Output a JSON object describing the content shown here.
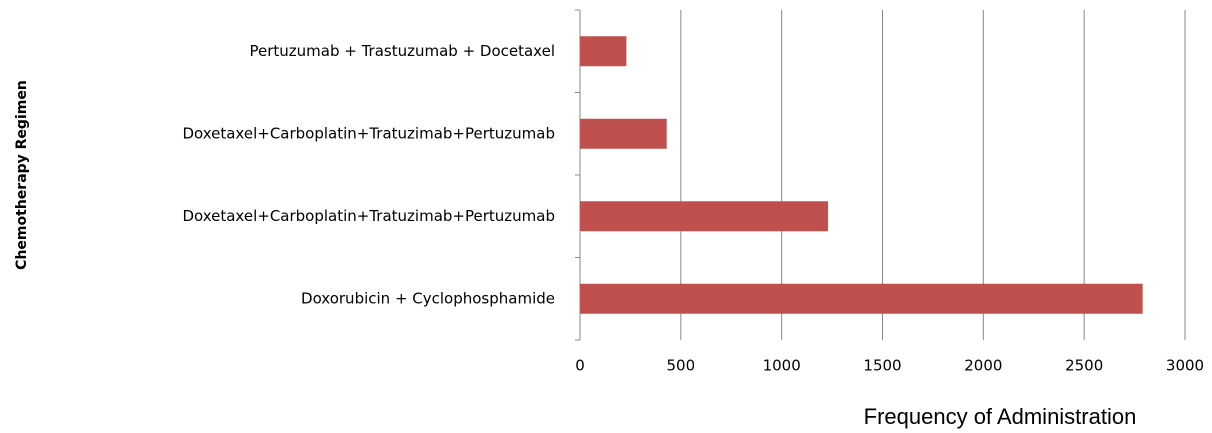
{
  "chart_data": {
    "type": "barh",
    "categories": [
      "Pertuzumab + Trastuzumab + Docetaxel",
      "Doxetaxel+Carboplatin+Tratuzimab+Pertuzumab",
      "Doxetaxel+Carboplatin+Tratuzimab+Pertuzumab",
      "Doxorubicin + Cyclophosphamide"
    ],
    "values": [
      230,
      430,
      1230,
      2790
    ],
    "color": "#c0504d",
    "xlabel": "Frequency of Administration",
    "ylabel": "Chemotherapy Regimen",
    "xlim": [
      0,
      3000
    ],
    "xticks": [
      0,
      500,
      1000,
      1500,
      2000,
      2500,
      3000
    ],
    "grid": true
  }
}
